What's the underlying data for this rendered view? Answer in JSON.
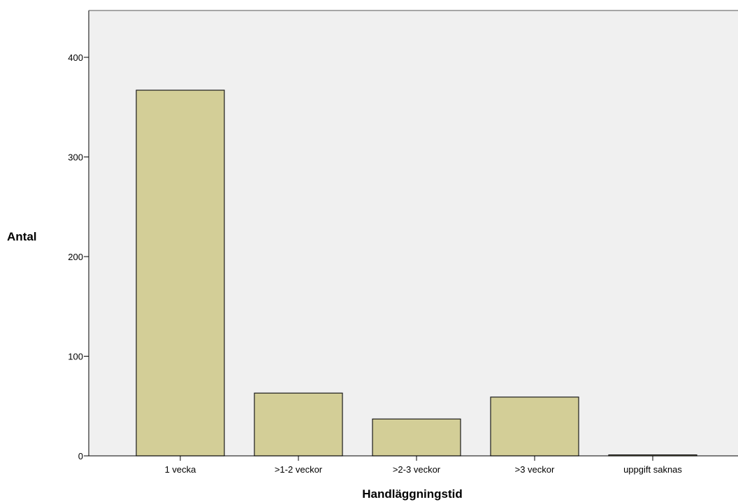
{
  "chart_data": {
    "type": "bar",
    "title": "",
    "xlabel": "Handläggningstid",
    "ylabel": "Antal",
    "categories": [
      "1 vecka",
      ">1-2 veckor",
      ">2-3 veckor",
      ">3 veckor",
      "uppgift saknas"
    ],
    "values": [
      367,
      63,
      37,
      59,
      1
    ],
    "ylim": [
      0,
      447
    ],
    "yticks": [
      0,
      100,
      200,
      300,
      400
    ],
    "grid": false,
    "legend": "none",
    "colors": {
      "plot_background": "#f0f0f0",
      "bar_fill": "#d3ce97",
      "bar_stroke": "#1a1a1a",
      "axis": "#000000"
    }
  }
}
